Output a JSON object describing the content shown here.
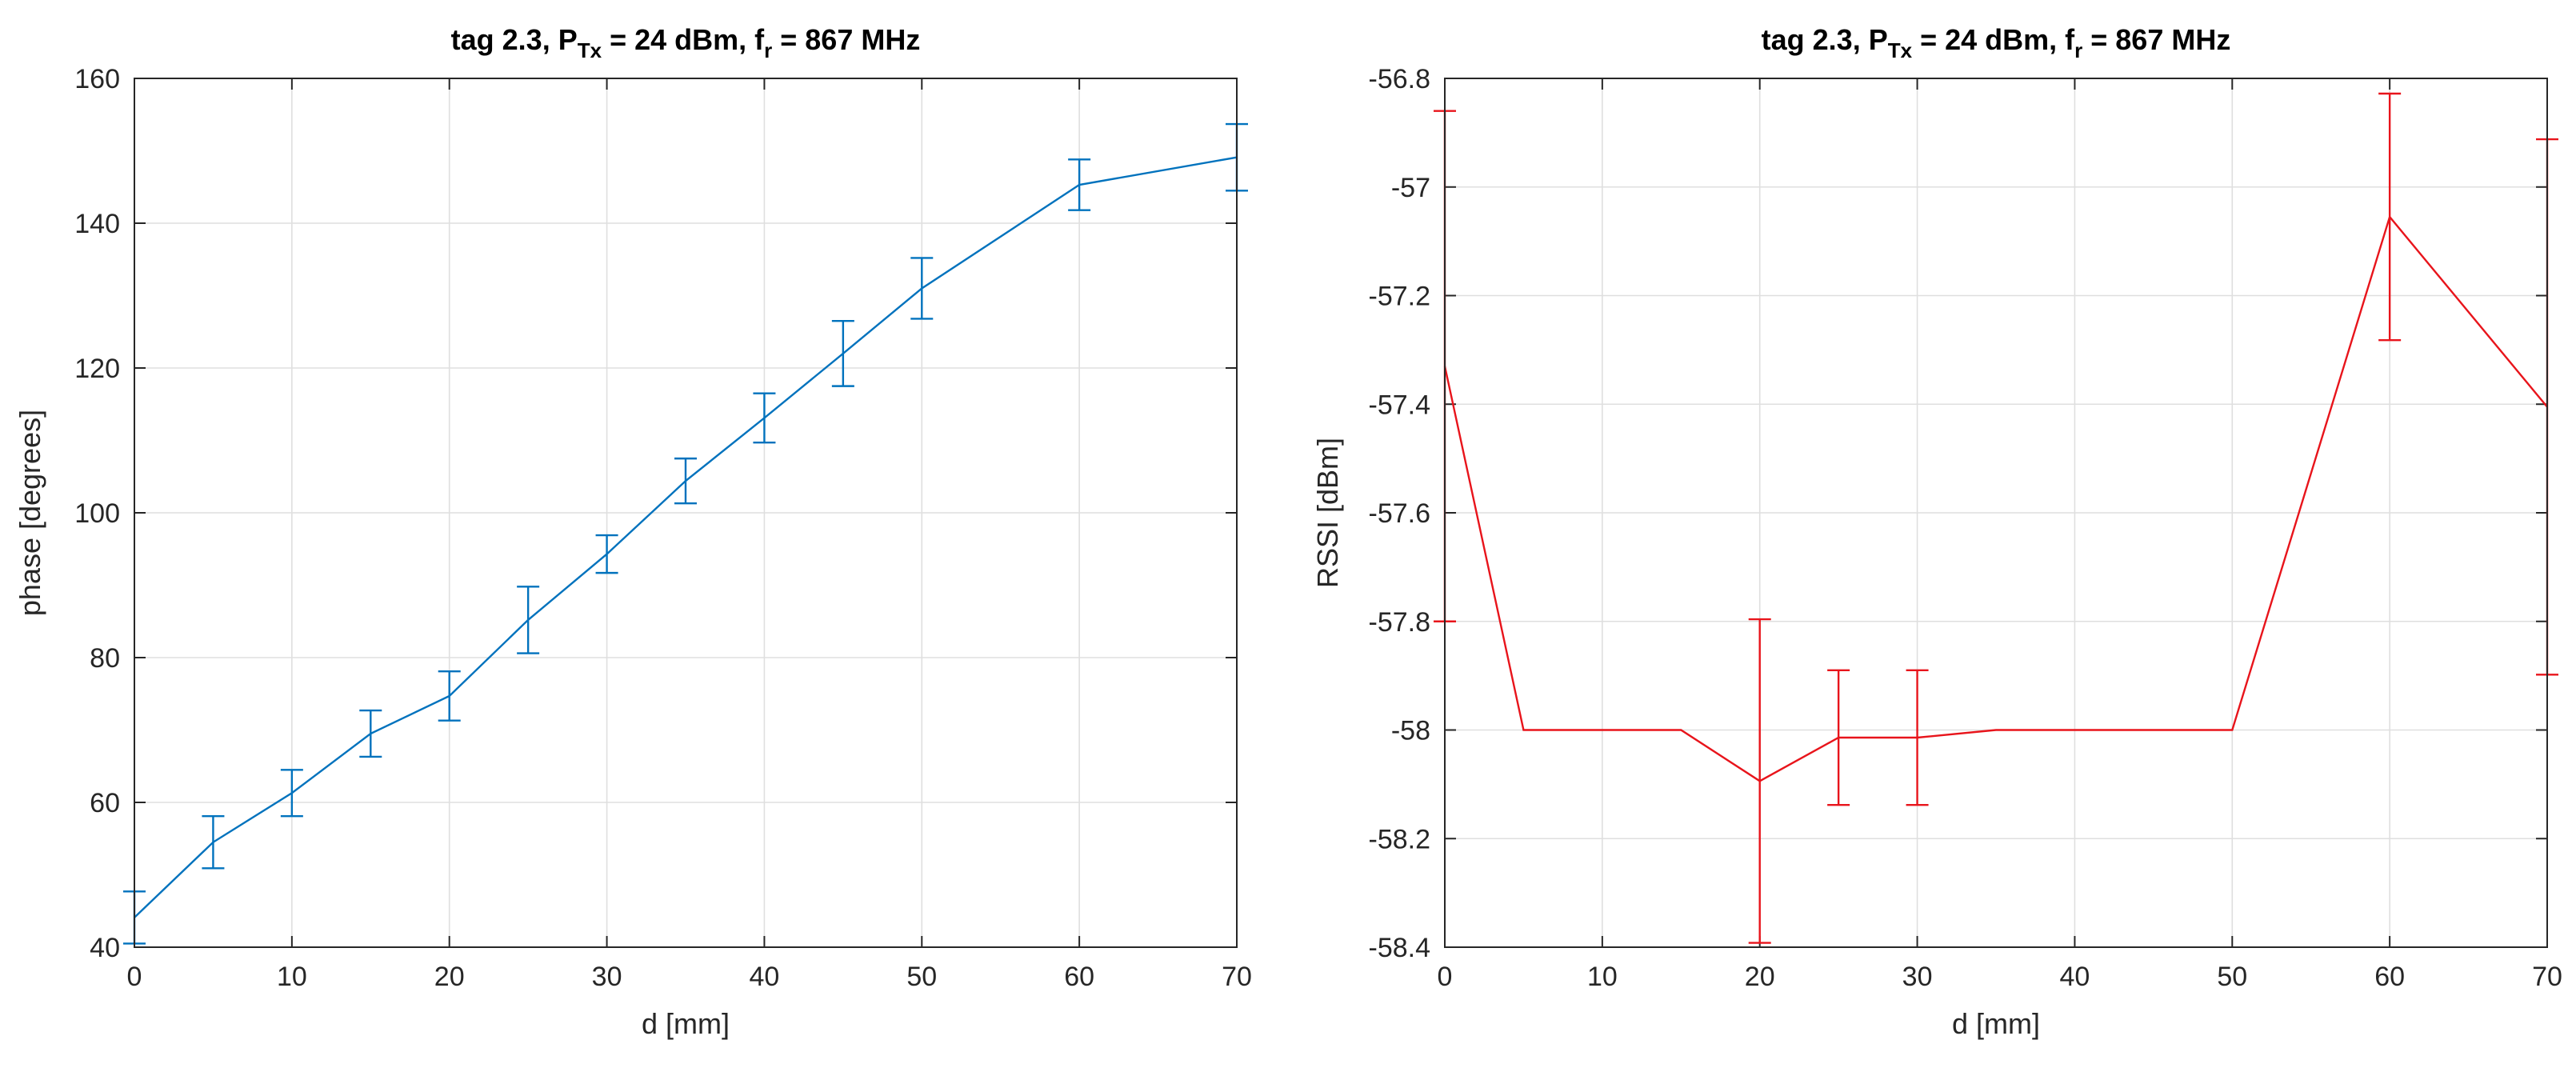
{
  "chart_data": [
    {
      "type": "line",
      "title": {
        "prefix": "tag 2.3, P",
        "prefix_sub": "Tx",
        "middle": " = 24 dBm, f",
        "middle_sub": "r",
        "suffix": " = 867 MHz"
      },
      "xlabel": "d [mm]",
      "ylabel": "phase [degrees]",
      "xlim": [
        0,
        70
      ],
      "ylim": [
        40,
        160
      ],
      "xticks": [
        0,
        10,
        20,
        30,
        40,
        50,
        60,
        70
      ],
      "yticks": [
        40,
        60,
        80,
        100,
        120,
        140,
        160
      ],
      "grid": true,
      "color": "#0072BD",
      "series": [
        {
          "name": "phase",
          "x": [
            0,
            5,
            10,
            15,
            20,
            25,
            30,
            35,
            40,
            45,
            50,
            60,
            70
          ],
          "y": [
            44.1,
            54.5,
            61.3,
            69.5,
            74.7,
            85.2,
            94.3,
            104.4,
            113.1,
            122,
            131,
            145.3,
            149.1
          ],
          "err": [
            3.6,
            3.6,
            3.2,
            3.2,
            3.4,
            4.6,
            2.6,
            3.1,
            3.4,
            4.5,
            4.2,
            3.5,
            4.6
          ]
        }
      ]
    },
    {
      "type": "line",
      "title": {
        "prefix": "tag 2.3, P",
        "prefix_sub": "Tx",
        "middle": " = 24 dBm, f",
        "middle_sub": "r",
        "suffix": " = 867 MHz"
      },
      "xlabel": "d [mm]",
      "ylabel": "RSSI [dBm]",
      "xlim": [
        0,
        70
      ],
      "ylim": [
        -58.4,
        -56.8
      ],
      "xticks": [
        0,
        10,
        20,
        30,
        40,
        50,
        60,
        70
      ],
      "yticks": [
        -58.4,
        -58.2,
        -58,
        -57.8,
        -57.6,
        -57.4,
        -57.2,
        -57,
        -56.8
      ],
      "grid": true,
      "color": "#E8141B",
      "series": [
        {
          "name": "RSSI",
          "x": [
            0,
            5,
            15,
            20,
            25,
            30,
            35,
            50,
            60,
            70
          ],
          "y": [
            -57.33,
            -58,
            -58,
            -58.094,
            -58.014,
            -58.014,
            -58,
            -58,
            -57.055,
            -57.405
          ],
          "err": [
            0.47,
            0,
            0,
            0.298,
            0.124,
            0.124,
            0,
            0,
            0.227,
            0.493
          ]
        }
      ]
    }
  ]
}
